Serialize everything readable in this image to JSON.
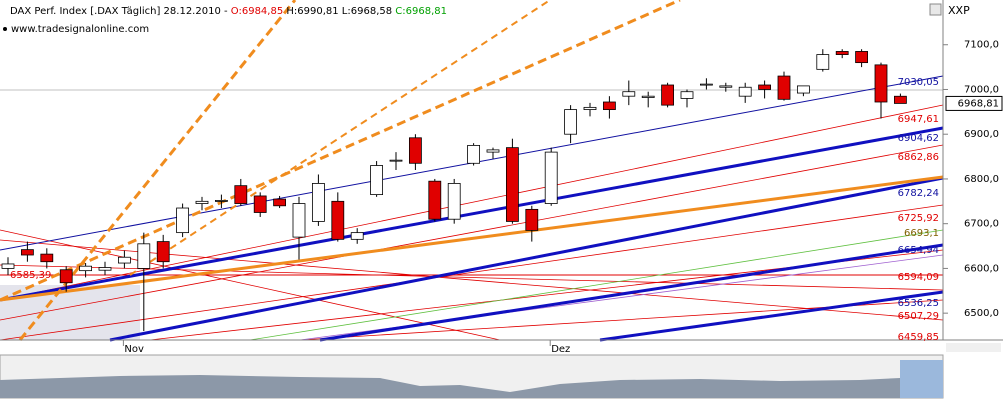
{
  "chart_data": {
    "type": "candlestick",
    "header": [
      {
        "text": "DAX Perf. Index [.DAX  Täglich] 28.12.2010 - ",
        "color": "#000000"
      },
      {
        "text": "O:6984,85",
        "color": "#e00000"
      },
      {
        "text": " H:6990,81 L:6968,58 ",
        "color": "#000000"
      },
      {
        "text": "C:6968,81",
        "color": "#00a000"
      }
    ],
    "source": "www.tradesignalonline.com",
    "axis_title": "XXP",
    "categories": [
      null,
      null,
      null,
      null,
      null,
      null,
      "Nov",
      null,
      null,
      null,
      null,
      null,
      null,
      null,
      null,
      null,
      null,
      null,
      null,
      null,
      null,
      null,
      null,
      null,
      null,
      null,
      null,
      null,
      "Dez",
      null,
      null,
      null,
      null,
      null,
      null,
      null,
      null,
      null,
      null,
      null,
      null,
      null,
      null,
      null,
      null,
      null,
      null
    ],
    "open": [
      6600,
      6642,
      6632,
      6597,
      6595,
      6596,
      6612,
      6600,
      6660,
      6680,
      6745,
      6750,
      6785,
      6762,
      6755,
      6670,
      6705,
      6750,
      6665,
      6765,
      6840,
      6892,
      6795,
      6710,
      6835,
      6860,
      6870,
      6732,
      6745,
      6900,
      6955,
      6972,
      6985,
      6982,
      7010,
      6980,
      7010,
      7005,
      6985,
      7010,
      7030,
      6992,
      7045,
      7085,
      7085,
      7055,
      6984.85
    ],
    "high": [
      6625,
      6660,
      6645,
      6605,
      6612,
      6615,
      6640,
      6680,
      6675,
      6745,
      6760,
      6765,
      6800,
      6770,
      6762,
      6760,
      6810,
      6770,
      6690,
      6840,
      6860,
      6900,
      6800,
      6800,
      6880,
      6870,
      6890,
      6740,
      6870,
      6965,
      6970,
      6985,
      7020,
      6995,
      7015,
      7000,
      7025,
      7015,
      7015,
      7020,
      7040,
      7008,
      7090,
      7090,
      7090,
      7060,
      6990.81
    ],
    "low": [
      6585,
      6615,
      6600,
      6548,
      6580,
      6585,
      6600,
      6460,
      6600,
      6670,
      6730,
      6735,
      6740,
      6715,
      6735,
      6620,
      6695,
      6660,
      6655,
      6760,
      6820,
      6820,
      6705,
      6700,
      6830,
      6845,
      6700,
      6660,
      6740,
      6880,
      6940,
      6935,
      6965,
      6960,
      6960,
      6960,
      7000,
      6995,
      6970,
      6980,
      6975,
      6985,
      7040,
      7070,
      7050,
      6935,
      6968.58
    ],
    "close": [
      6610,
      6630,
      6615,
      6568,
      6605,
      6602,
      6625,
      6655,
      6615,
      6735,
      6750,
      6752,
      6745,
      6725,
      6740,
      6745,
      6790,
      6665,
      6680,
      6830,
      6842,
      6835,
      6710,
      6790,
      6875,
      6865,
      6705,
      6685,
      6860,
      6955,
      6960,
      6955,
      6995,
      6985,
      6965,
      6995,
      7012,
      7008,
      7005,
      7000,
      6978,
      7008,
      7078,
      7078,
      7060,
      6972,
      6968.81
    ],
    "up_color": "#ffffff",
    "down_color": "#e00000",
    "ylim": [
      6440,
      7200
    ],
    "yticks": [
      {
        "value": 7100,
        "label": "7100,0"
      },
      {
        "value": 7000,
        "label": "7000,0"
      },
      {
        "value": 6900,
        "label": "6900,0"
      },
      {
        "value": 6800,
        "label": "6800,0"
      },
      {
        "value": 6700,
        "label": "6700,0"
      },
      {
        "value": 6600,
        "label": "6600,0"
      },
      {
        "value": 6500,
        "label": "6500,0"
      }
    ],
    "last_price": {
      "value": 6968.81,
      "label": "6968,81"
    },
    "left_label": {
      "value": 6585.39,
      "label": "6585,39",
      "color": "#e00000"
    },
    "price_labels": [
      {
        "value": 7030.05,
        "label": "7030,05",
        "color": "#1010a0"
      },
      {
        "value": 6947.61,
        "label": "6947,61",
        "color": "#e00000"
      },
      {
        "value": 6904.62,
        "label": "6904,62",
        "color": "#1010a0"
      },
      {
        "value": 6862.86,
        "label": "6862,86",
        "color": "#e00000"
      },
      {
        "value": 6782.24,
        "label": "6782,24",
        "color": "#1010a0"
      },
      {
        "value": 6725.92,
        "label": "6725,92",
        "color": "#e00000"
      },
      {
        "value": 6693.1,
        "label": "6693,1",
        "color": "#806000"
      },
      {
        "value": 6654.94,
        "label": "6654,94",
        "color": "#1010a0"
      },
      {
        "value": 6594.09,
        "label": "6594,09",
        "color": "#e00000"
      },
      {
        "value": 6536.25,
        "label": "6536,25",
        "color": "#1010a0"
      },
      {
        "value": 6507.29,
        "label": "6507,29",
        "color": "#e00000"
      },
      {
        "value": 6459.85,
        "label": "6459,85",
        "color": "#e00000"
      }
    ]
  }
}
